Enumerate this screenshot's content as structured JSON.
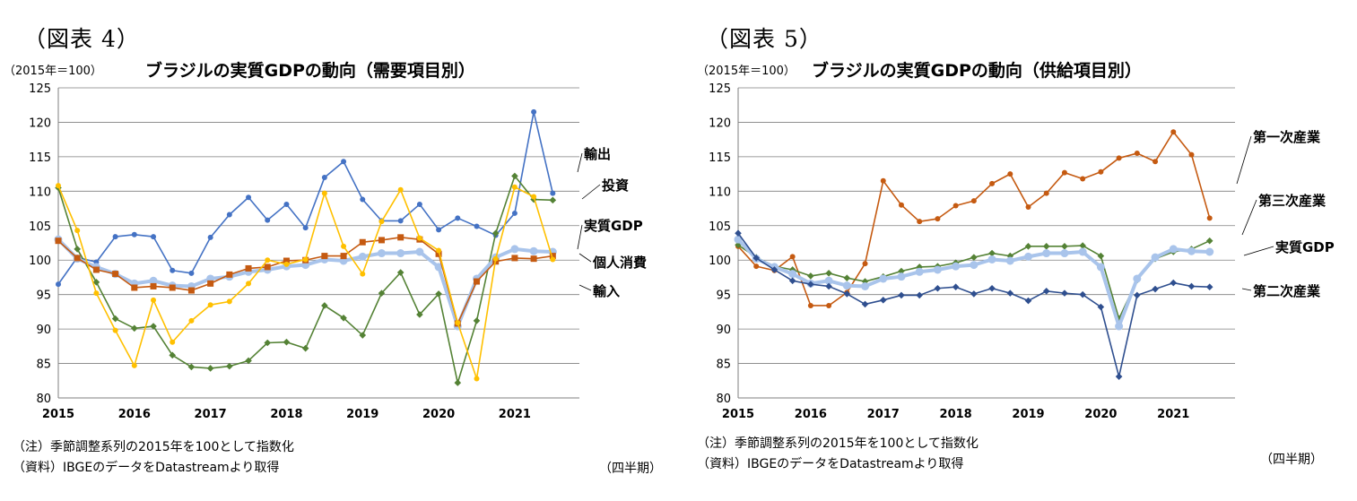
{
  "panels": [
    {
      "figure_label": "（図表 4）",
      "unit": "（2015年＝100）",
      "notes": [
        "（注）季節調整系列の2015年を100として指数化",
        "（資料）IBGEのデータをDatastreamより取得"
      ],
      "period": "（四半期）"
    },
    {
      "figure_label": "（図表 5）",
      "unit": "（2015年＝100）",
      "notes": [
        "（注）季節調整系列の2015年を100として指数化",
        "（資料）IBGEのデータをDatastreamより取得"
      ],
      "period": "（四半期）"
    }
  ],
  "chart_data": [
    {
      "type": "line",
      "title": "ブラジルの実質GDPの動向（需要項目別）",
      "xlabel": "",
      "ylabel": "",
      "ylim": [
        80,
        125
      ],
      "yticks": [
        80,
        85,
        90,
        95,
        100,
        105,
        110,
        115,
        120,
        125
      ],
      "xticks": [
        "2015",
        "2016",
        "2017",
        "2018",
        "2019",
        "2020",
        "2021"
      ],
      "x": [
        "2015Q1",
        "2015Q2",
        "2015Q3",
        "2015Q4",
        "2016Q1",
        "2016Q2",
        "2016Q3",
        "2016Q4",
        "2017Q1",
        "2017Q2",
        "2017Q3",
        "2017Q4",
        "2018Q1",
        "2018Q2",
        "2018Q3",
        "2018Q4",
        "2019Q1",
        "2019Q2",
        "2019Q3",
        "2019Q4",
        "2020Q1",
        "2020Q2",
        "2020Q3",
        "2020Q4",
        "2021Q1",
        "2021Q2",
        "2021Q3"
      ],
      "grid": true,
      "series": [
        {
          "name": "輸出",
          "color": "#4472c4",
          "marker": "circle",
          "values": [
            96.5,
            100.4,
            99.7,
            103.4,
            103.7,
            103.4,
            98.5,
            98.1,
            103.3,
            106.6,
            109.1,
            105.8,
            108.1,
            104.7,
            112.0,
            114.3,
            108.8,
            105.7,
            105.7,
            108.1,
            104.4,
            106.1,
            104.9,
            103.6,
            106.8,
            121.5,
            109.7
          ]
        },
        {
          "name": "投資",
          "color": "#548235",
          "marker": "diamond",
          "values": [
            110.5,
            101.6,
            96.8,
            91.5,
            90.1,
            90.4,
            86.2,
            84.5,
            84.3,
            84.6,
            85.4,
            88.0,
            88.1,
            87.2,
            93.4,
            91.6,
            89.1,
            95.2,
            98.2,
            92.1,
            95.1,
            82.2,
            91.2,
            103.9,
            112.2,
            108.8,
            108.7
          ]
        },
        {
          "name": "実質GDP",
          "color": "#a9c4eb",
          "marker": "circle",
          "values": [
            103.0,
            100.2,
            99.0,
            98.0,
            96.6,
            97.0,
            96.3,
            96.2,
            97.3,
            97.6,
            98.3,
            98.6,
            99.1,
            99.3,
            100.1,
            99.9,
            100.5,
            101.0,
            101.0,
            101.2,
            99.0,
            90.4,
            97.3,
            100.4,
            101.6,
            101.3,
            101.2
          ]
        },
        {
          "name": "個人消費",
          "color": "#c55a11",
          "marker": "square",
          "values": [
            102.8,
            100.3,
            98.6,
            98.0,
            96.0,
            96.2,
            96.0,
            95.6,
            96.6,
            97.9,
            98.8,
            99.0,
            99.9,
            100.0,
            100.6,
            100.6,
            102.6,
            102.9,
            103.3,
            103.0,
            100.9,
            90.8,
            96.9,
            99.8,
            100.3,
            100.2,
            100.6
          ]
        },
        {
          "name": "輸入",
          "color": "#ffc000",
          "marker": "circle",
          "values": [
            110.8,
            104.3,
            95.2,
            89.8,
            84.7,
            94.2,
            88.1,
            91.2,
            93.5,
            94.0,
            96.6,
            100.0,
            99.4,
            100.1,
            109.7,
            102.0,
            98.0,
            105.6,
            110.2,
            103.2,
            101.4,
            90.9,
            82.8,
            100.2,
            110.6,
            109.2,
            100.1
          ]
        }
      ]
    },
    {
      "type": "line",
      "title": "ブラジルの実質GDPの動向（供給項目別）",
      "xlabel": "",
      "ylabel": "",
      "ylim": [
        80,
        125
      ],
      "yticks": [
        80,
        85,
        90,
        95,
        100,
        105,
        110,
        115,
        120,
        125
      ],
      "xticks": [
        "2015",
        "2016",
        "2017",
        "2018",
        "2019",
        "2020",
        "2021"
      ],
      "x": [
        "2015Q1",
        "2015Q2",
        "2015Q3",
        "2015Q4",
        "2016Q1",
        "2016Q2",
        "2016Q3",
        "2016Q4",
        "2017Q1",
        "2017Q2",
        "2017Q3",
        "2017Q4",
        "2018Q1",
        "2018Q2",
        "2018Q3",
        "2018Q4",
        "2019Q1",
        "2019Q2",
        "2019Q3",
        "2019Q4",
        "2020Q1",
        "2020Q2",
        "2020Q3",
        "2020Q4",
        "2021Q1",
        "2021Q2",
        "2021Q3"
      ],
      "grid": true,
      "series": [
        {
          "name": "第一次産業",
          "color": "#c55a11",
          "marker": "circle",
          "values": [
            102.0,
            99.1,
            98.5,
            100.5,
            93.4,
            93.4,
            95.3,
            99.5,
            111.5,
            108.0,
            105.6,
            106.0,
            107.9,
            108.6,
            111.1,
            112.5,
            107.7,
            109.7,
            112.7,
            111.8,
            112.8,
            114.8,
            115.5,
            114.3,
            118.6,
            115.3,
            106.1
          ]
        },
        {
          "name": "第三次産業",
          "color": "#548235",
          "marker": "diamond",
          "values": [
            102.2,
            100.4,
            99.1,
            98.6,
            97.7,
            98.1,
            97.4,
            96.9,
            97.6,
            98.4,
            99.0,
            99.1,
            99.6,
            100.4,
            101.0,
            100.6,
            102.0,
            102.0,
            102.0,
            102.1,
            100.6,
            91.5,
            97.1,
            100.2,
            101.2,
            101.6,
            102.8
          ]
        },
        {
          "name": "実質GDP",
          "color": "#a9c4eb",
          "marker": "circle",
          "values": [
            103.0,
            100.2,
            99.0,
            98.0,
            96.6,
            97.0,
            96.3,
            96.2,
            97.3,
            97.6,
            98.3,
            98.6,
            99.1,
            99.3,
            100.1,
            99.9,
            100.5,
            101.0,
            101.0,
            101.2,
            99.0,
            90.4,
            97.3,
            100.4,
            101.6,
            101.3,
            101.2
          ]
        },
        {
          "name": "第二次産業",
          "color": "#2f4f8f",
          "marker": "diamond",
          "values": [
            103.9,
            100.3,
            98.6,
            97.0,
            96.5,
            96.2,
            95.1,
            93.6,
            94.2,
            94.9,
            94.9,
            95.9,
            96.1,
            95.1,
            95.9,
            95.2,
            94.1,
            95.5,
            95.2,
            95.0,
            93.2,
            83.1,
            94.9,
            95.8,
            96.7,
            96.2,
            96.1
          ]
        }
      ]
    }
  ]
}
